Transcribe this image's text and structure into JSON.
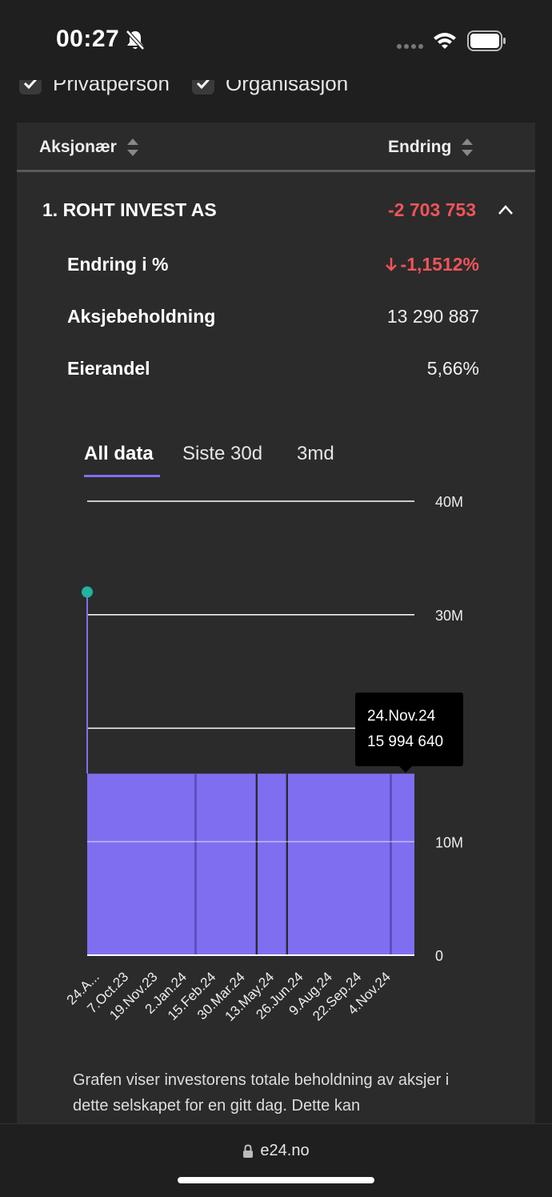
{
  "status_bar": {
    "time": "00:27"
  },
  "filters": [
    {
      "label": "Privatperson",
      "checked": true
    },
    {
      "label": "Organisasjon",
      "checked": true
    }
  ],
  "table": {
    "col_shareholder": "Aksjonær",
    "col_change": "Endring"
  },
  "row": {
    "title": "1. ROHT INVEST AS",
    "change": "-2 703 753",
    "details": [
      {
        "label": "Endring i %",
        "value": "-1,1512%"
      },
      {
        "label": "Aksjebeholdning",
        "value": "13 290 887"
      },
      {
        "label": "Eierandel",
        "value": "5,66%"
      }
    ]
  },
  "tabs": [
    "All data",
    "Siste 30d",
    "3md"
  ],
  "active_tab": 0,
  "tooltip": {
    "date": "24.Nov.24",
    "value": "15 994 640"
  },
  "description": "Grafen viser investorens totale beholdning av aksjer i dette selskapet for en gitt dag. Dette kan",
  "browser": {
    "url": "e24.no"
  },
  "colors": {
    "accent": "#7f6ff0",
    "negative": "#f0545a",
    "marker": "#1fb5a0"
  },
  "chart_data": {
    "type": "bar",
    "ylim": [
      0,
      40000000
    ],
    "y_ticks": [
      "40M",
      "30M",
      "10M",
      "0"
    ],
    "x_ticks": [
      "24.A...",
      "7.Oct.23",
      "19.Nov.23",
      "2.Jan.24",
      "15.Feb.24",
      "30.Mar.24",
      "13.May.24",
      "26.Jun.24",
      "9.Aug.24",
      "22.Sep.24",
      "4.Nov.24"
    ],
    "start_marker_value": 32000000,
    "bar_value": 15994640
  }
}
